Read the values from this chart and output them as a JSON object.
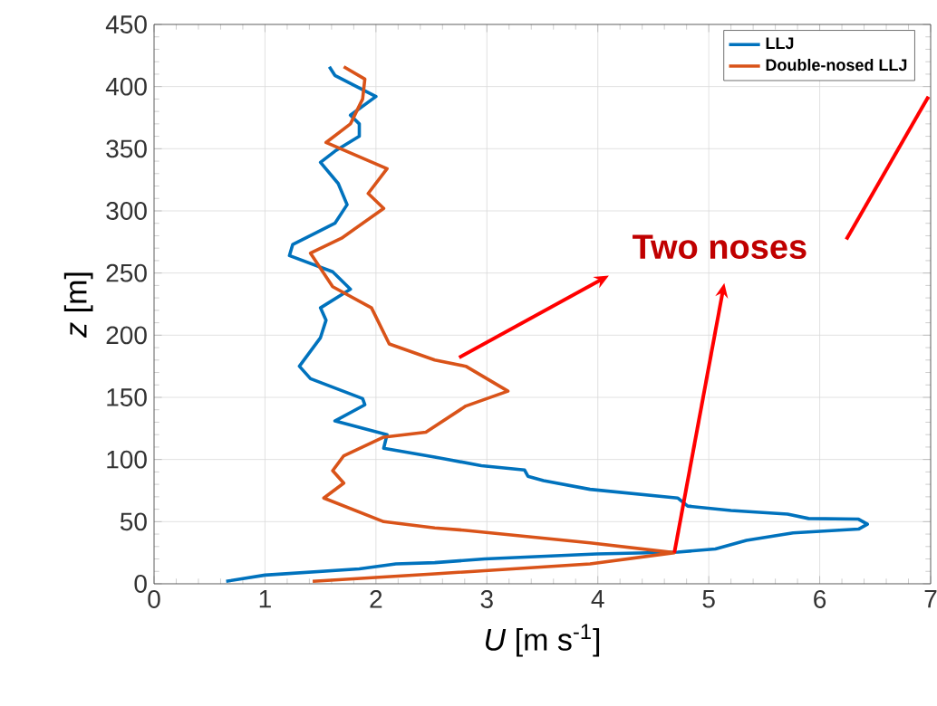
{
  "chart_data": {
    "type": "line",
    "xlabel": "*U* [m s$^{-1}$]",
    "ylabel": "*z* [m]",
    "xlim": [
      0,
      7
    ],
    "ylim": [
      0,
      450
    ],
    "xticks": [
      0,
      1,
      2,
      3,
      4,
      5,
      6,
      7
    ],
    "yticks": [
      0,
      50,
      100,
      150,
      200,
      250,
      300,
      350,
      400,
      450
    ],
    "grid": true,
    "legend": "top right",
    "line_style": "solid",
    "annotations": [
      {
        "text": "Two noses",
        "x": 4.69,
        "y": 25
      }
    ],
    "series": [
      {
        "name": "LLJ",
        "color": "#0072bd",
        "x": [
          0.65,
          1.0,
          1.85,
          2.18,
          2.53,
          2.98,
          3.99,
          4.72,
          5.06,
          5.34,
          5.76,
          6.35,
          6.43,
          6.35,
          5.9,
          5.71,
          5.2,
          4.81,
          4.72,
          3.93,
          3.51,
          3.37,
          3.34,
          2.95,
          2.53,
          2.07,
          2.1,
          1.63,
          1.9,
          1.88,
          1.41,
          1.31,
          1.5,
          1.55,
          1.5,
          1.77,
          1.61,
          1.22,
          1.25,
          1.63,
          1.74,
          1.66,
          1.5,
          1.63,
          1.85,
          1.85,
          1.77,
          2.0,
          1.63,
          1.58
        ],
        "values": [
          2,
          7,
          12,
          16,
          17,
          20,
          24,
          25.5,
          28,
          35,
          41,
          44,
          48,
          52,
          52.5,
          56,
          59,
          62.5,
          69,
          76,
          83,
          86.5,
          91.5,
          95,
          102,
          109,
          120,
          131,
          144,
          149,
          165,
          175,
          198,
          212,
          222,
          237,
          251,
          264,
          273,
          290,
          305,
          322,
          339,
          348,
          360,
          370,
          377,
          392,
          409,
          416
        ]
      },
      {
        "name": "Double-nosed LLJ",
        "color": "#d95319",
        "x": [
          1.43,
          2.53,
          3.93,
          4.69,
          3.93,
          2.81,
          2.53,
          2.07,
          1.53,
          1.71,
          1.61,
          1.71,
          2.07,
          2.45,
          2.81,
          3.19,
          2.81,
          2.53,
          2.12,
          1.96,
          1.61,
          1.41,
          1.69,
          2.07,
          1.93,
          2.1,
          1.55,
          1.77,
          1.88,
          1.9,
          1.71
        ],
        "values": [
          2,
          8,
          16,
          25,
          33,
          43,
          45,
          50,
          69,
          81,
          91,
          103,
          118,
          122,
          143,
          155,
          175,
          180,
          193,
          222,
          239,
          266,
          278,
          302,
          314,
          334,
          355,
          370,
          390,
          406,
          416
        ]
      }
    ]
  }
}
